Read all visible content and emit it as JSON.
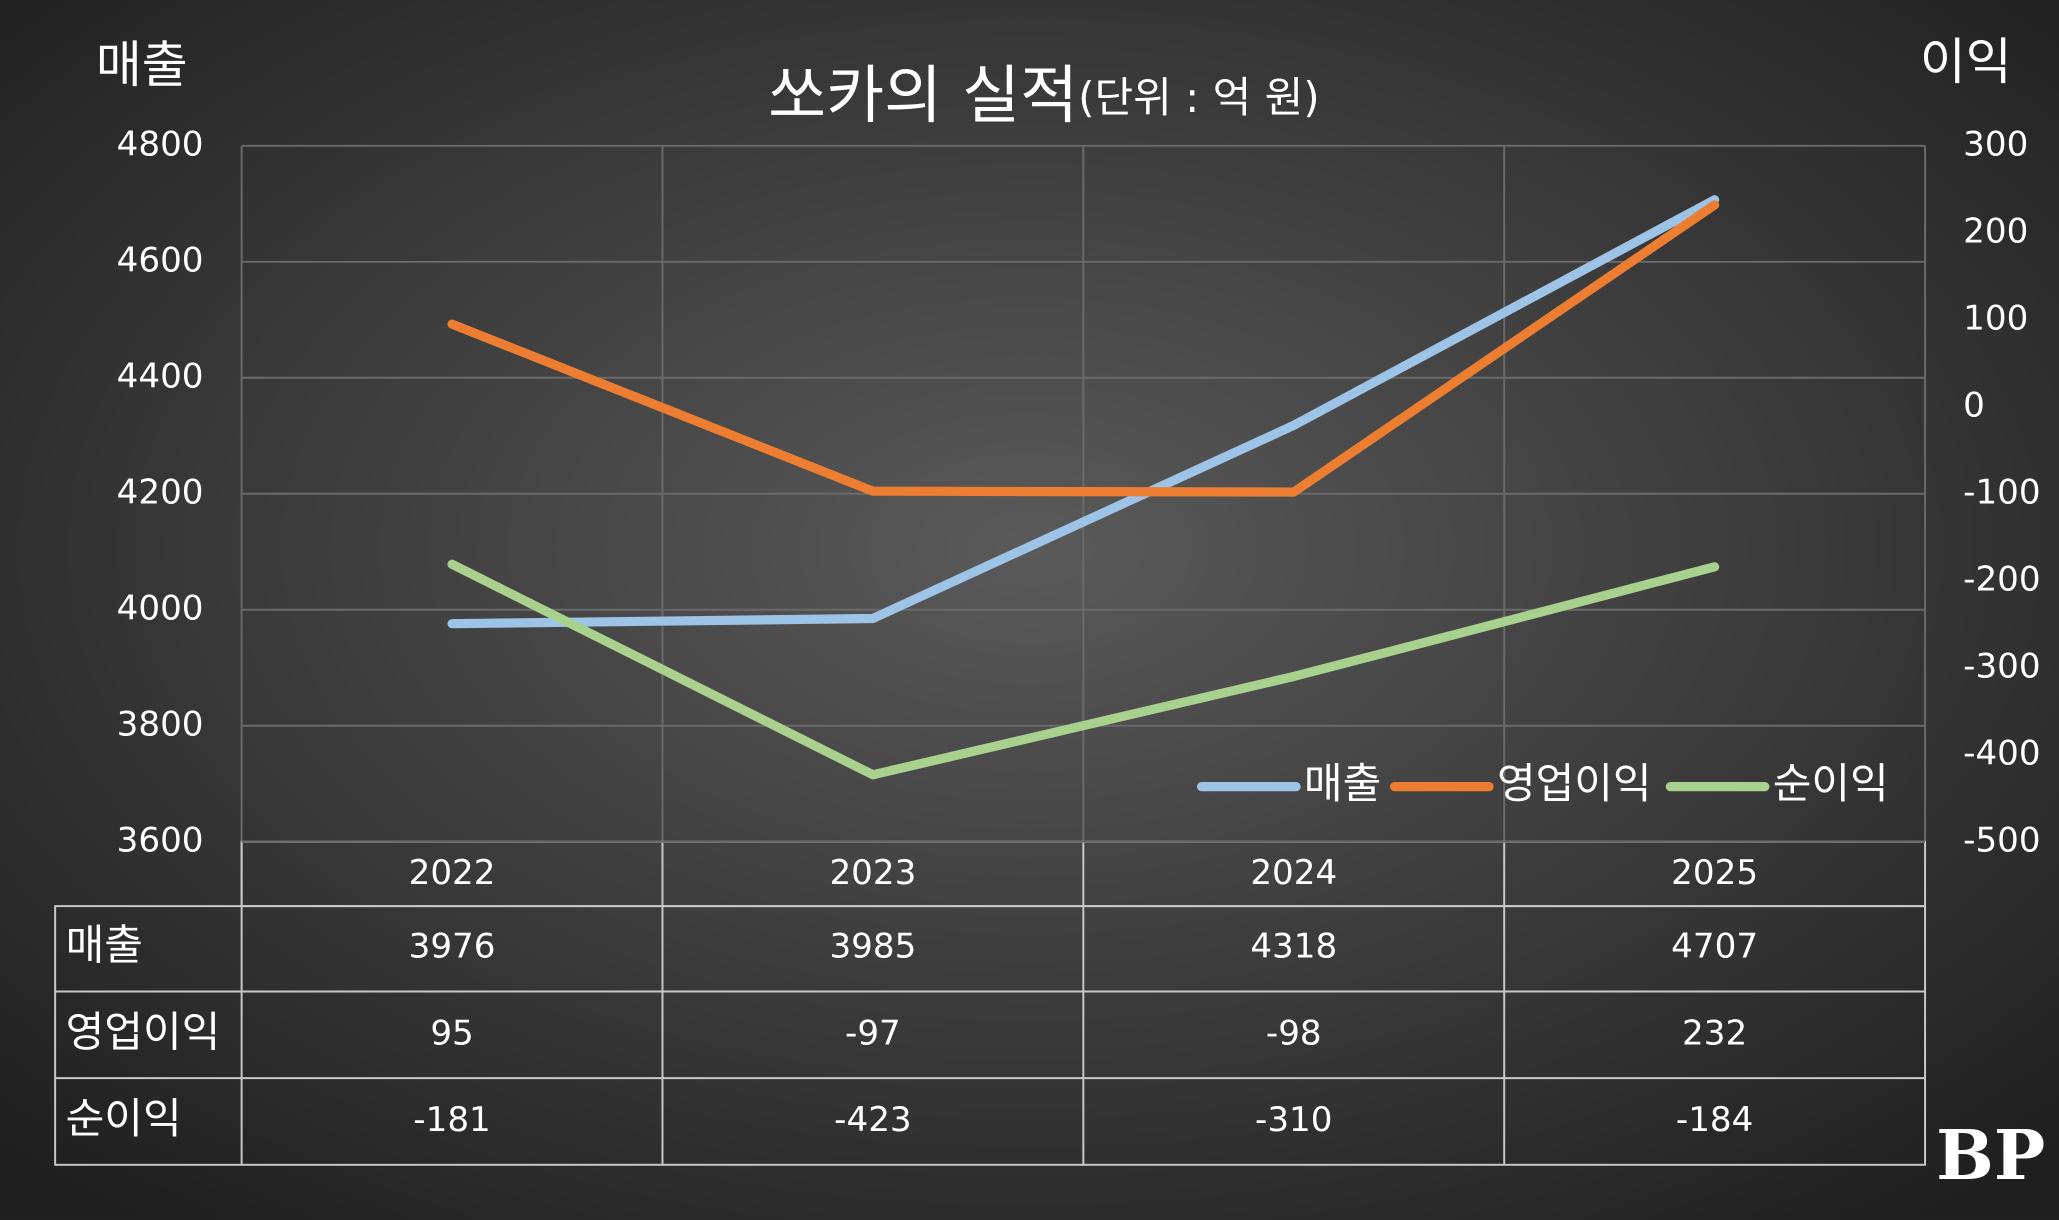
{
  "chart_data": {
    "type": "line",
    "title": "쏘카의 실적",
    "subtitle": "(단위 : 억 원)",
    "y_label": "매출",
    "y2_label": "이익",
    "categories": [
      "2022",
      "2023",
      "2024",
      "2025"
    ],
    "series": [
      {
        "name": "매출",
        "color": "#9dc3e6",
        "values": [
          3976,
          3985,
          4318,
          4707
        ]
      },
      {
        "name": "영업이익",
        "color": "#ed7d31",
        "axis": "y2",
        "values": [
          95,
          -97,
          -98,
          232
        ]
      },
      {
        "name": "순이익",
        "color": "#a9d18e",
        "axis": "y2",
        "values": [
          -181,
          -423,
          -310,
          -184
        ]
      }
    ],
    "ylim": [
      3600,
      4800
    ],
    "yticks": [
      3600,
      3800,
      4000,
      4200,
      4400,
      4600,
      4800
    ],
    "y2lim": [
      -500,
      300
    ],
    "y2ticks": [
      -500,
      -400,
      -300,
      -200,
      -100,
      0,
      100,
      200,
      300
    ],
    "grid": true,
    "legend": "bottom-right",
    "data_table": true,
    "watermark": "BP"
  }
}
